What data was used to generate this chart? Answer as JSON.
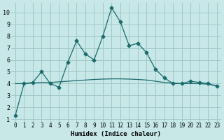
{
  "xlabel": "Humidex (Indice chaleur)",
  "ylabel": "",
  "background_color": "#c8e8e8",
  "grid_color": "#a0c8c8",
  "line_color": "#1a6b6b",
  "x_ticks": [
    0,
    1,
    2,
    3,
    4,
    5,
    6,
    7,
    8,
    9,
    10,
    11,
    12,
    13,
    14,
    15,
    16,
    17,
    18,
    19,
    20,
    21,
    22,
    23
  ],
  "y_ticks": [
    1,
    2,
    3,
    4,
    5,
    6,
    7,
    8,
    9,
    10
  ],
  "ylim": [
    0.8,
    10.8
  ],
  "xlim": [
    -0.5,
    23.5
  ],
  "line1_x": [
    0,
    1,
    2,
    3,
    4,
    5,
    6,
    7,
    8,
    9,
    10,
    11,
    12,
    13,
    14,
    15,
    16,
    17,
    18,
    19,
    20,
    21,
    22,
    23
  ],
  "line1_y": [
    1.3,
    4.0,
    4.1,
    5.0,
    4.0,
    3.7,
    5.8,
    7.6,
    6.5,
    6.0,
    8.0,
    10.4,
    9.2,
    7.2,
    7.4,
    6.6,
    5.2,
    4.5,
    4.0,
    4.0,
    4.2,
    4.1,
    4.0,
    3.8
  ],
  "line2_x": [
    0,
    1,
    2,
    3,
    4,
    5,
    6,
    7,
    8,
    9,
    10,
    11,
    12,
    13,
    14,
    15,
    16,
    17,
    18,
    19,
    20,
    21,
    22,
    23
  ],
  "line2_y": [
    4.0,
    4.0,
    4.05,
    4.1,
    4.1,
    4.15,
    4.2,
    4.25,
    4.3,
    4.35,
    4.38,
    4.4,
    4.4,
    4.38,
    4.35,
    4.3,
    4.2,
    4.1,
    4.05,
    4.0,
    4.0,
    4.0,
    3.95,
    3.8
  ]
}
